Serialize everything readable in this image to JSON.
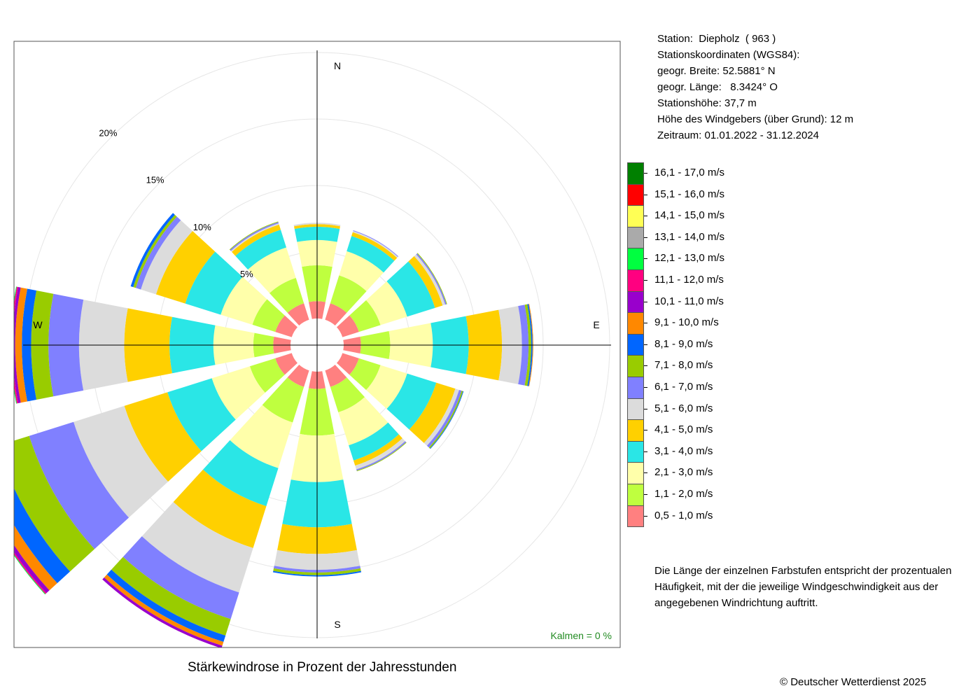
{
  "chart_data": {
    "type": "polar-stacked-bar",
    "title": "Stärkewindrose in Prozent der Jahresstunden",
    "rings": [
      {
        "value": 5,
        "label": "5%"
      },
      {
        "value": 10,
        "label": "10%"
      },
      {
        "value": 15,
        "label": "15%"
      },
      {
        "value": 20,
        "label": "20%"
      }
    ],
    "directions": [
      {
        "name": "N",
        "label": "N"
      },
      {
        "name": "E",
        "label": "E"
      },
      {
        "name": "S",
        "label": "S"
      },
      {
        "name": "W",
        "label": "W"
      }
    ],
    "calm": "Kalmen  =  0 %",
    "sectors_deg": [
      0,
      30,
      60,
      90,
      120,
      150,
      180,
      210,
      240,
      270,
      300,
      330
    ],
    "classes": [
      {
        "label": "0,5 - 1,0 m/s",
        "color": "#FF8080"
      },
      {
        "label": "1,1 - 2,0 m/s",
        "color": "#BFFF3F"
      },
      {
        "label": "2,1 - 3,0 m/s",
        "color": "#FFFFAA"
      },
      {
        "label": "3,1 - 4,0 m/s",
        "color": "#2AE6E6"
      },
      {
        "label": "4,1 - 5,0 m/s",
        "color": "#FFD000"
      },
      {
        "label": "5,1 - 6,0 m/s",
        "color": "#DCDCDC"
      },
      {
        "label": "6,1 - 7,0 m/s",
        "color": "#8080FF"
      },
      {
        "label": "7,1 - 8,0 m/s",
        "color": "#99CC00"
      },
      {
        "label": "8,1 - 9,0 m/s",
        "color": "#0066FF"
      },
      {
        "label": "9,1 - 10,0 m/s",
        "color": "#FF8800"
      },
      {
        "label": "10,1 - 11,0 m/s",
        "color": "#9900CC"
      },
      {
        "label": "11,1 - 12,0 m/s",
        "color": "#FF0080"
      },
      {
        "label": "12,1 - 13,0 m/s",
        "color": "#00FF40"
      },
      {
        "label": "13,1 - 14,0 m/s",
        "color": "#AAAAAA"
      },
      {
        "label": "14,1 - 15,0 m/s",
        "color": "#FFFF55"
      },
      {
        "label": "15,1 - 16,0 m/s",
        "color": "#FF0000"
      },
      {
        "label": "16,1 - 17,0 m/s",
        "color": "#008000"
      }
    ],
    "series": [
      {
        "direction_deg": 0,
        "values": [
          1.3,
          2.7,
          1.9,
          1.0,
          0.2,
          0.1,
          0,
          0,
          0,
          0,
          0,
          0,
          0,
          0,
          0,
          0,
          0
        ]
      },
      {
        "direction_deg": 30,
        "values": [
          1.3,
          2.2,
          1.9,
          1.2,
          0.3,
          0.1,
          0.05,
          0,
          0,
          0,
          0,
          0,
          0,
          0,
          0,
          0,
          0
        ]
      },
      {
        "direction_deg": 60,
        "values": [
          1.3,
          1.7,
          2.1,
          2.2,
          0.6,
          0.2,
          0.1,
          0.05,
          0,
          0,
          0,
          0,
          0,
          0,
          0,
          0,
          0
        ]
      },
      {
        "direction_deg": 90,
        "values": [
          1.3,
          2.2,
          3.2,
          2.7,
          2.5,
          1.5,
          0.5,
          0.2,
          0.1,
          0.05,
          0,
          0,
          0,
          0,
          0,
          0,
          0
        ]
      },
      {
        "direction_deg": 120,
        "values": [
          1.3,
          1.7,
          2.1,
          2.3,
          1.5,
          0.3,
          0.2,
          0.1,
          0.05,
          0,
          0,
          0,
          0,
          0,
          0,
          0,
          0
        ]
      },
      {
        "direction_deg": 150,
        "values": [
          1.3,
          2.0,
          2.6,
          1.2,
          0.4,
          0.3,
          0.1,
          0.05,
          0,
          0,
          0,
          0,
          0,
          0,
          0,
          0,
          0
        ]
      },
      {
        "direction_deg": 180,
        "values": [
          1.3,
          3.5,
          3.5,
          3.4,
          2.0,
          1.2,
          0.2,
          0.2,
          0.1,
          0,
          0,
          0,
          0,
          0,
          0,
          0,
          0
        ]
      },
      {
        "direction_deg": 210,
        "values": [
          1.3,
          2.8,
          3.6,
          3.0,
          3.3,
          3.5,
          2.1,
          1.3,
          0.5,
          0.3,
          0.2,
          0,
          0,
          0,
          0,
          0,
          0
        ]
      },
      {
        "direction_deg": 240,
        "values": [
          1.3,
          2.0,
          3.0,
          3.5,
          3.4,
          4.0,
          3.5,
          2.5,
          1.3,
          0.8,
          0.3,
          0.1,
          0.05,
          0,
          0,
          0,
          0
        ]
      },
      {
        "direction_deg": 270,
        "values": [
          1.3,
          1.5,
          3.0,
          3.3,
          3.4,
          3.4,
          2.3,
          1.3,
          0.7,
          0.5,
          0.2,
          0.1,
          0.05,
          0,
          0,
          0,
          0
        ]
      },
      {
        "direction_deg": 300,
        "values": [
          1.3,
          1.8,
          2.5,
          2.8,
          2.3,
          1.2,
          0.4,
          0.2,
          0.2,
          0,
          0,
          0,
          0,
          0,
          0,
          0,
          0
        ]
      },
      {
        "direction_deg": 330,
        "values": [
          1.3,
          2.0,
          2.4,
          1.4,
          0.4,
          0.1,
          0.1,
          0.05,
          0,
          0,
          0,
          0,
          0,
          0,
          0,
          0,
          0
        ]
      }
    ]
  },
  "info": {
    "station": "Station:  Diepholz  ( 963 )",
    "coords_title": "Stationskoordinaten (WGS84):",
    "lat": "geogr. Breite: 52.5881° N",
    "lon": "geogr. Länge:   8.3424° O",
    "elevation": "Stationshöhe: 37,7 m",
    "sensor_height": "Höhe des Windgebers (über Grund): 12 m",
    "period": "Zeitraum: 01.01.2022 - 31.12.2024"
  },
  "note": "Die Länge der einzelnen Farbstufen entspricht der prozentualen Häufigkeit, mit der die jeweilige Windgeschwindigkeit aus der angegebenen Windrichtung auftritt.",
  "copyright": "© Deutscher Wetterdienst  2025"
}
